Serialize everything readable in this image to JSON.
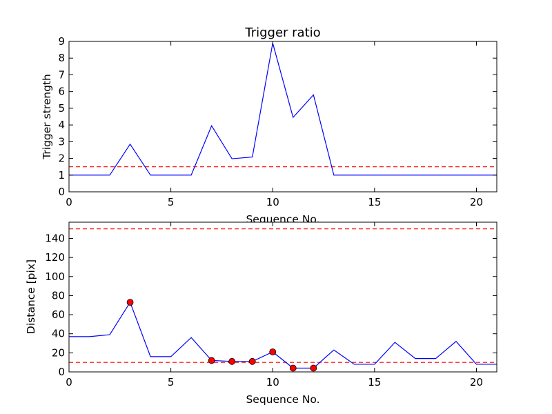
{
  "chart_data": [
    {
      "type": "line",
      "title": "Trigger ratio",
      "xlabel": "Sequence No.",
      "ylabel": "Trigger strength",
      "xlim": [
        0,
        21
      ],
      "ylim": [
        0,
        9
      ],
      "xticks": [
        0,
        5,
        10,
        15,
        20
      ],
      "yticks": [
        0,
        1,
        2,
        3,
        4,
        5,
        6,
        7,
        8,
        9
      ],
      "series": [
        {
          "color": "#0000ff",
          "style": "solid",
          "x": [
            0,
            1,
            2,
            3,
            4,
            5,
            6,
            7,
            8,
            9,
            10,
            11,
            12,
            13,
            14,
            15,
            16,
            17,
            18,
            19,
            20,
            21
          ],
          "y": [
            1,
            1,
            1,
            2.85,
            1,
            1,
            1,
            3.95,
            1.98,
            2.08,
            8.9,
            4.45,
            5.8,
            1,
            1,
            1,
            1,
            1,
            1,
            1,
            1,
            1
          ]
        }
      ],
      "hlines": [
        {
          "y": 1.5,
          "color": "#ff0000",
          "style": "dashed"
        }
      ],
      "grid": false
    },
    {
      "type": "line",
      "title": "",
      "xlabel": "Sequence No.",
      "ylabel": "Distance [pix]",
      "xlim": [
        0,
        21
      ],
      "ylim": [
        0,
        157
      ],
      "xticks": [
        0,
        5,
        10,
        15,
        20
      ],
      "yticks": [
        0,
        20,
        40,
        60,
        80,
        100,
        120,
        140
      ],
      "series": [
        {
          "color": "#0000ff",
          "style": "solid",
          "x": [
            0,
            1,
            2,
            3,
            4,
            5,
            6,
            7,
            8,
            9,
            10,
            11,
            12,
            13,
            14,
            15,
            16,
            17,
            18,
            19,
            20,
            21
          ],
          "y": [
            37,
            37,
            39,
            73,
            16,
            16,
            36,
            12,
            11,
            11,
            21,
            4,
            4,
            23,
            8,
            8,
            31,
            14,
            14,
            32,
            8,
            8
          ]
        }
      ],
      "markers": {
        "color": "#ff0000",
        "x": [
          3,
          7,
          8,
          9,
          10,
          11,
          12
        ],
        "y": [
          73,
          12,
          11,
          11,
          21,
          4,
          4
        ]
      },
      "hlines": [
        {
          "y": 150,
          "color": "#ff0000",
          "style": "dashed"
        },
        {
          "y": 10,
          "color": "#ff0000",
          "style": "dashed"
        }
      ],
      "grid": false
    }
  ]
}
